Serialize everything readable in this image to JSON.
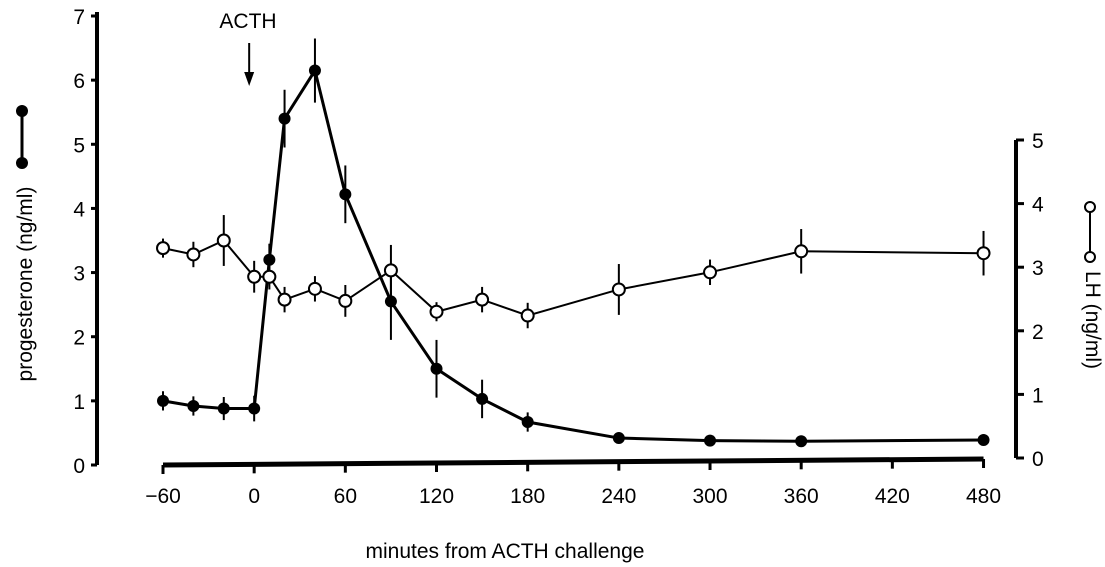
{
  "chart_data": {
    "type": "line",
    "xlabel": "minutes from ACTH challenge",
    "ylabel_left": "progesterone (ng/ml)",
    "ylabel_right": "LH (ng/ml)",
    "annotation": {
      "text": "ACTH",
      "x": 0
    },
    "x_tick_labels": [
      "−60",
      "0",
      "60",
      "120",
      "180",
      "240",
      "300",
      "360",
      "420",
      "480"
    ],
    "x_tick_positions": [
      -60,
      0,
      60,
      120,
      180,
      240,
      300,
      360,
      420,
      480
    ],
    "ylim_left": [
      0,
      7
    ],
    "y_ticks_left": [
      "0",
      "1",
      "2",
      "3",
      "4",
      "5",
      "6",
      "7"
    ],
    "ylim_right": [
      0,
      5
    ],
    "y_ticks_right": [
      "0",
      "1",
      "2",
      "3",
      "4",
      "5"
    ],
    "grid": false,
    "legend": "symbols beside axis titles",
    "colors": {
      "ink": "#000000",
      "background": "#ffffff"
    },
    "series": [
      {
        "axis": "left",
        "marker": "filled-circle",
        "points": [
          {
            "x": -60,
            "y": 1.0,
            "err": 0.15
          },
          {
            "x": -40,
            "y": 0.92,
            "err": 0.15
          },
          {
            "x": -20,
            "y": 0.88,
            "err": 0.18
          },
          {
            "x": 0,
            "y": 0.88,
            "err": 0.2
          },
          {
            "x": 10,
            "y": 3.2,
            "err": 0.25
          },
          {
            "x": 20,
            "y": 5.4,
            "err": 0.45
          },
          {
            "x": 40,
            "y": 6.15,
            "err": 0.5
          },
          {
            "x": 60,
            "y": 4.22,
            "err": 0.45
          },
          {
            "x": 90,
            "y": 2.55,
            "err": 0.6
          },
          {
            "x": 120,
            "y": 1.5,
            "err": 0.45
          },
          {
            "x": 150,
            "y": 1.03,
            "err": 0.3
          },
          {
            "x": 180,
            "y": 0.67,
            "err": 0.15
          },
          {
            "x": 240,
            "y": 0.42,
            "err": 0.05
          },
          {
            "x": 300,
            "y": 0.38,
            "err": 0.05
          },
          {
            "x": 360,
            "y": 0.37,
            "err": 0.05
          },
          {
            "x": 480,
            "y": 0.39,
            "err": 0.05
          }
        ]
      },
      {
        "axis": "right",
        "marker": "open-circle",
        "points": [
          {
            "x": -60,
            "y": 3.3,
            "err": 0.15
          },
          {
            "x": -40,
            "y": 3.2,
            "err": 0.2
          },
          {
            "x": -20,
            "y": 3.42,
            "err": 0.4
          },
          {
            "x": 0,
            "y": 2.85,
            "err": 0.25
          },
          {
            "x": 10,
            "y": 2.85,
            "err": 0.2
          },
          {
            "x": 20,
            "y": 2.49,
            "err": 0.2
          },
          {
            "x": 40,
            "y": 2.66,
            "err": 0.2
          },
          {
            "x": 60,
            "y": 2.47,
            "err": 0.25
          },
          {
            "x": 90,
            "y": 2.95,
            "err": 0.4
          },
          {
            "x": 120,
            "y": 2.3,
            "err": 0.15
          },
          {
            "x": 150,
            "y": 2.49,
            "err": 0.2
          },
          {
            "x": 180,
            "y": 2.24,
            "err": 0.2
          },
          {
            "x": 240,
            "y": 2.65,
            "err": 0.4
          },
          {
            "x": 300,
            "y": 2.92,
            "err": 0.2
          },
          {
            "x": 360,
            "y": 3.25,
            "err": 0.35
          },
          {
            "x": 480,
            "y": 3.22,
            "err": 0.35
          }
        ]
      }
    ]
  }
}
